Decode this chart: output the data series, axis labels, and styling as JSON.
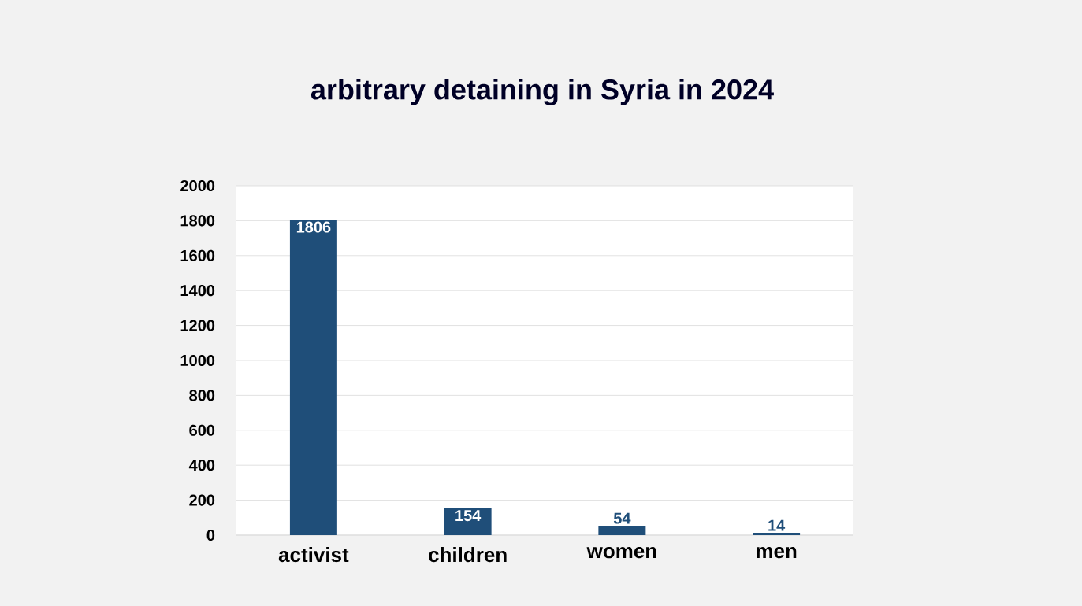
{
  "chart_data": {
    "type": "bar",
    "title": "arbitrary detaining in Syria in 2024",
    "categories": [
      "activist",
      "children",
      "women",
      "men"
    ],
    "values": [
      1806,
      154,
      54,
      14
    ],
    "color": "#1f4e79",
    "ylim": [
      0,
      2000
    ],
    "yticks": [
      0,
      200,
      400,
      600,
      800,
      1000,
      1200,
      1400,
      1600,
      1800,
      2000
    ],
    "grid": "y",
    "data_labels": true
  }
}
